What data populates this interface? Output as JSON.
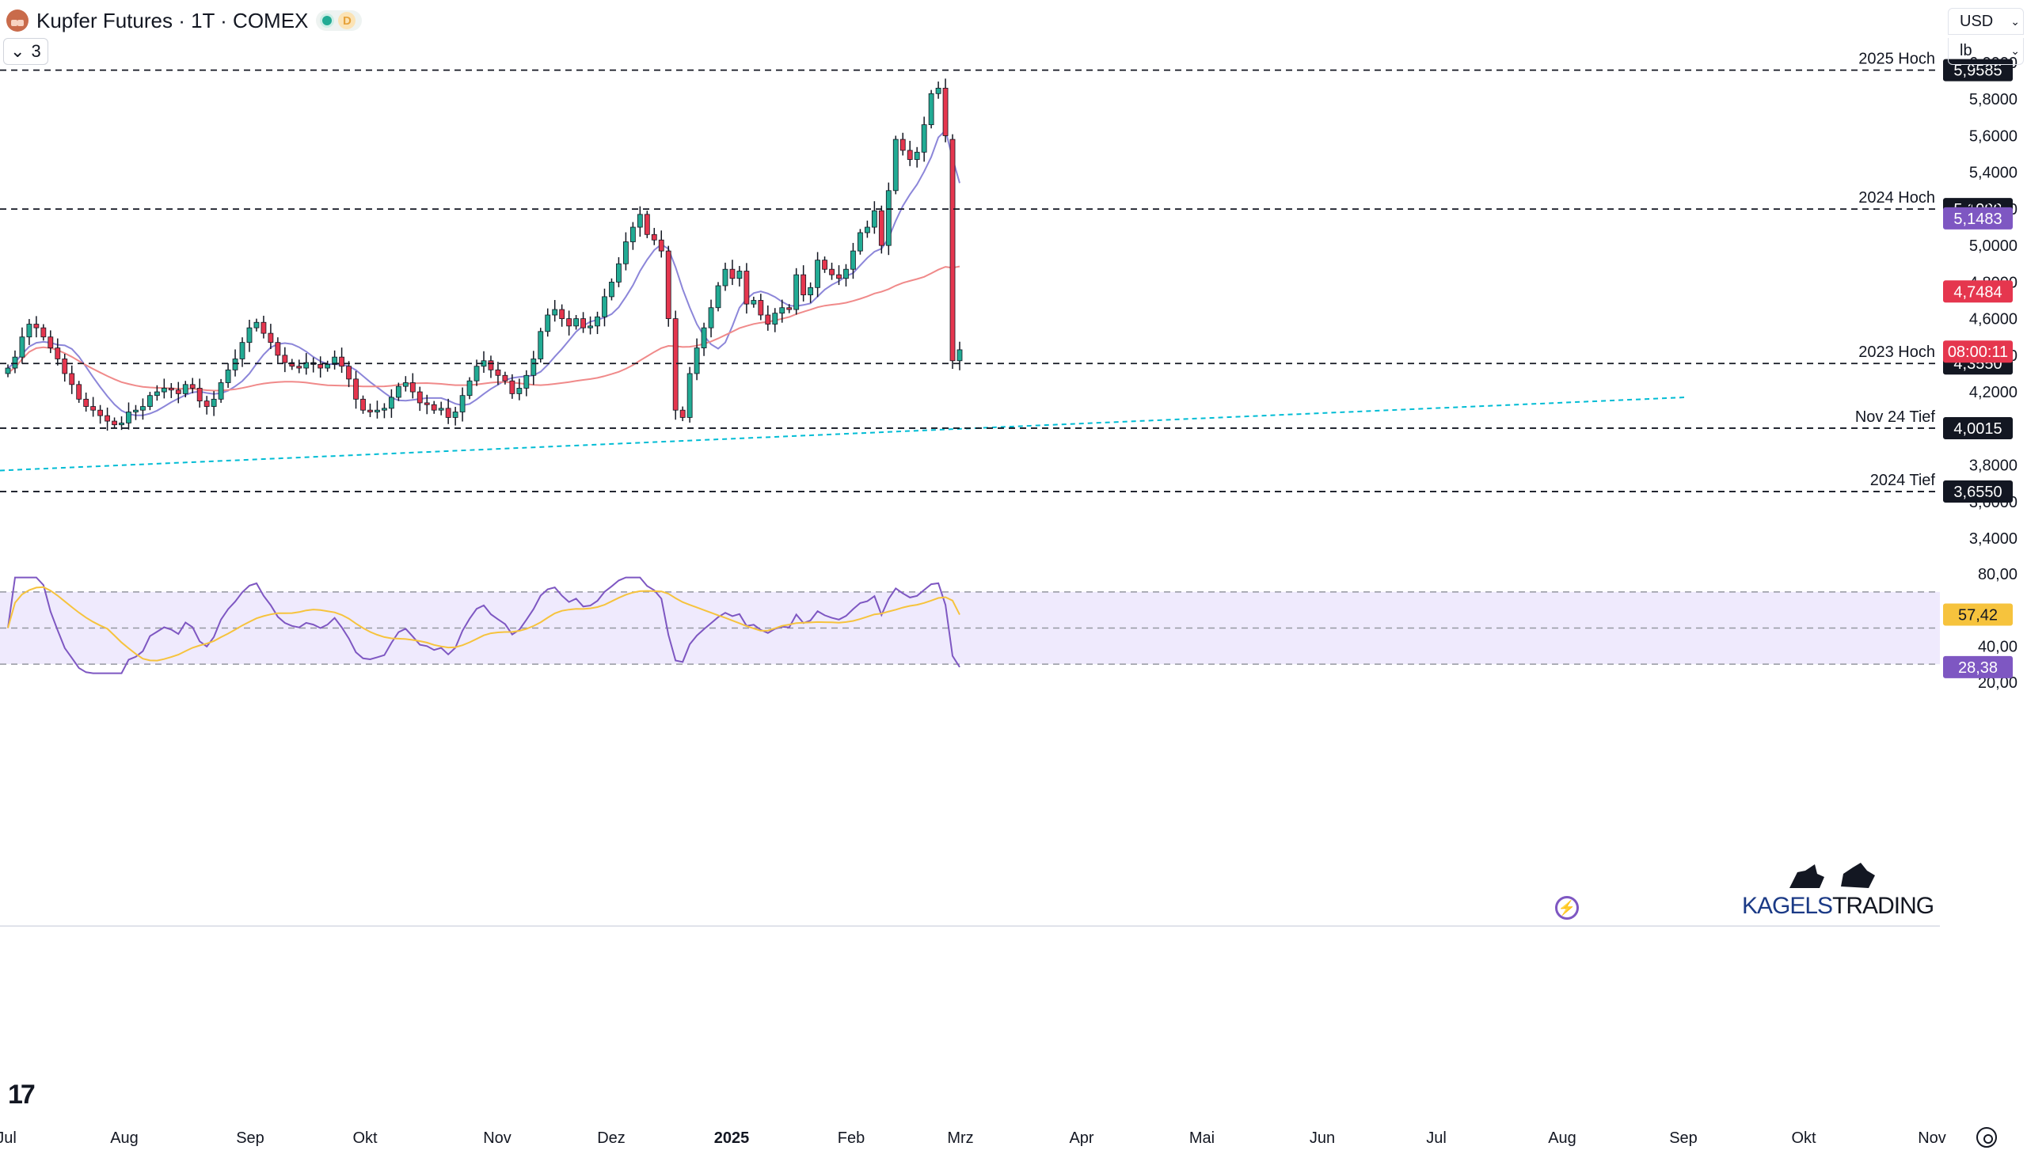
{
  "header": {
    "title": "Kupfer Futures · 1T · COMEX",
    "badge": "D",
    "indicator_count": "3",
    "toggle_glyph": "⌄"
  },
  "selectors": {
    "currency": "USD",
    "unit": "lb"
  },
  "logo": {
    "part1": "KAGELS",
    "part2": "TRADING"
  },
  "tv_mark": "17",
  "colors": {
    "bull": "#22ab94",
    "bear": "#e5364e",
    "ma_fast": "#8c86d9",
    "ma_slow": "#f08a8a",
    "trend": "#00bcd4",
    "rsi": "#7e57c2",
    "rsi_ma": "#f6c33d",
    "rsi_band": "#efeafd"
  },
  "chart_data": {
    "type": "candlestick",
    "title": "",
    "price_axis": {
      "ticks": [
        "6,0000",
        "5,8000",
        "5,6000",
        "5,4000",
        "5,2000",
        "5,0000",
        "4,8000",
        "4,6000",
        "4,4000",
        "4,2000",
        "3,8000",
        "3,6000",
        "3,4000"
      ],
      "values": [
        6.0,
        5.8,
        5.6,
        5.4,
        5.2,
        5.0,
        4.8,
        4.6,
        4.4,
        4.2,
        3.8,
        3.6,
        3.4
      ]
    },
    "time_axis": [
      "Jul",
      "Aug",
      "Sep",
      "Okt",
      "Nov",
      "Dez",
      "2025",
      "Feb",
      "Mrz",
      "Apr",
      "Mai",
      "Jun",
      "Jul",
      "Aug",
      "Sep",
      "Okt",
      "Nov"
    ],
    "levels": [
      {
        "label": "2025 Hoch",
        "value": 5.9585,
        "value_text": "5,9585"
      },
      {
        "label": "2024 Hoch",
        "value": 5.199,
        "value_text": "5,1990"
      },
      {
        "label": "2023 Hoch",
        "value": 4.355,
        "value_text": "4,3550"
      },
      {
        "label": "Nov 24 Tief",
        "value": 4.0015,
        "value_text": "4,0015"
      },
      {
        "label": "2024 Tief",
        "value": 3.655,
        "value_text": "3,6550"
      }
    ],
    "price_tags": [
      {
        "text": "5,1483",
        "value": 5.1483,
        "kind": "ma_fast"
      },
      {
        "text": "4,7484",
        "value": 4.7484,
        "kind": "ma_slow"
      },
      {
        "text": "08:00:11",
        "value": 4.42,
        "kind": "countdown"
      }
    ],
    "close_approx": [
      4.33,
      4.39,
      4.5,
      4.57,
      4.55,
      4.5,
      4.44,
      4.38,
      4.3,
      4.24,
      4.16,
      4.12,
      4.1,
      4.07,
      4.04,
      4.02,
      4.03,
      4.09,
      4.1,
      4.12,
      4.18,
      4.2,
      4.22,
      4.21,
      4.19,
      4.24,
      4.22,
      4.15,
      4.12,
      4.16,
      4.25,
      4.32,
      4.38,
      4.47,
      4.55,
      4.58,
      4.52,
      4.47,
      4.4,
      4.36,
      4.34,
      4.33,
      4.36,
      4.35,
      4.33,
      4.35,
      4.39,
      4.34,
      4.27,
      4.16,
      4.1,
      4.09,
      4.1,
      4.11,
      4.17,
      4.23,
      4.25,
      4.2,
      4.14,
      4.13,
      4.1,
      4.11,
      4.06,
      4.09,
      4.18,
      4.26,
      4.34,
      4.37,
      4.32,
      4.29,
      4.26,
      4.19,
      4.22,
      4.29,
      4.38,
      4.53,
      4.62,
      4.65,
      4.6,
      4.56,
      4.6,
      4.55,
      4.56,
      4.61,
      4.72,
      4.8,
      4.9,
      5.02,
      5.1,
      5.17,
      5.06,
      5.03,
      4.97,
      4.6,
      4.1,
      4.06,
      4.3,
      4.44,
      4.55,
      4.66,
      4.78,
      4.87,
      4.82,
      4.86,
      4.68,
      4.7,
      4.62,
      4.57,
      4.63,
      4.66,
      4.65,
      4.84,
      4.73,
      4.77,
      4.92,
      4.87,
      4.84,
      4.82,
      4.87,
      4.97,
      5.07,
      5.1,
      5.19,
      5.0,
      5.3,
      5.58,
      5.52,
      5.47,
      5.51,
      5.66,
      5.83,
      5.86,
      5.6,
      4.37,
      4.43
    ],
    "moving_averages": [
      {
        "name": "ma_fast",
        "value_text": "5,1483"
      },
      {
        "name": "ma_slow",
        "value_text": "4,7484"
      }
    ],
    "rsi": {
      "axis_ticks": [
        "80,00",
        "40,00",
        "20,00"
      ],
      "values": [
        57.42,
        28.38
      ],
      "value_text": [
        "57,42",
        "28,38"
      ],
      "band": [
        30,
        70
      ],
      "ylim": [
        20,
        85
      ]
    }
  }
}
